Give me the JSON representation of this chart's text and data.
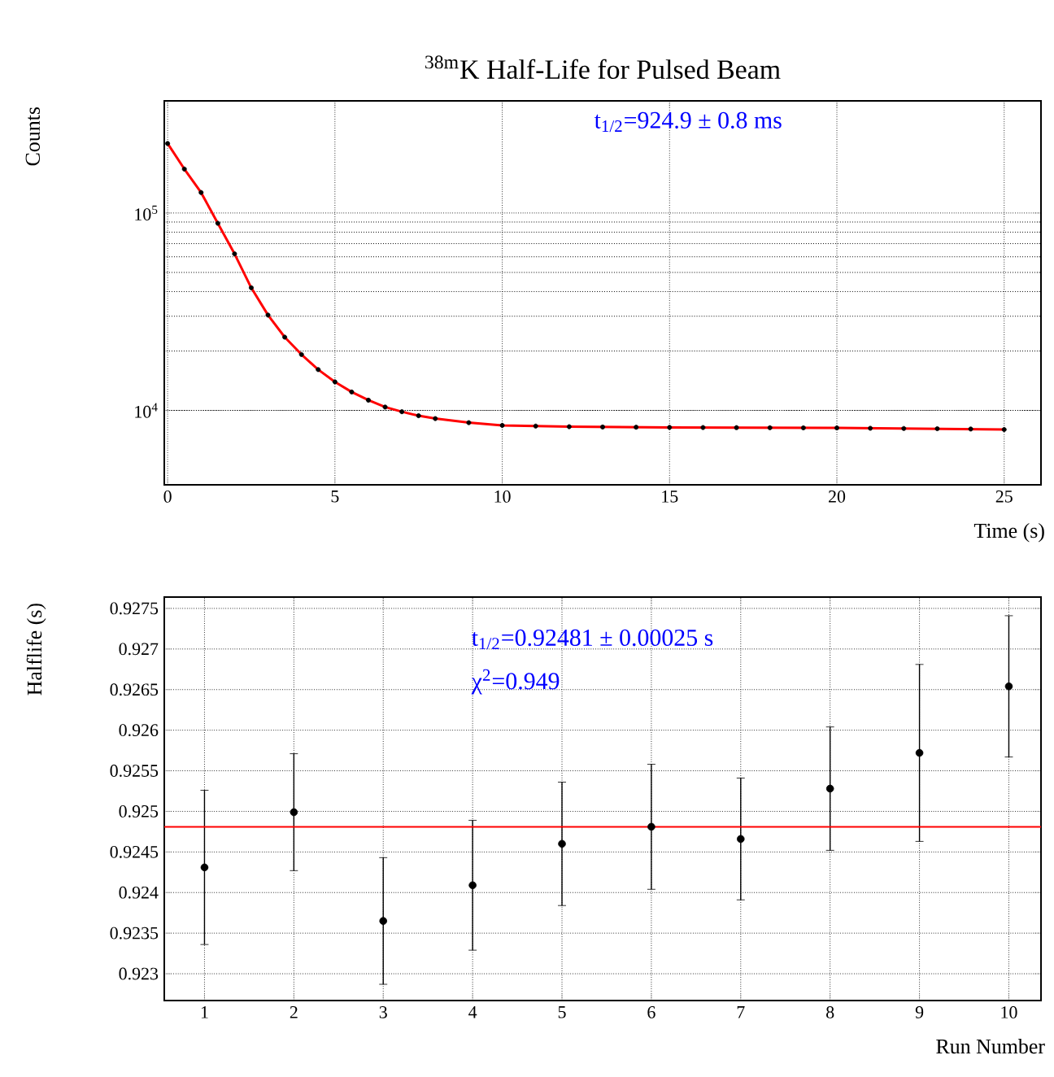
{
  "chart_data": [
    {
      "type": "scatter",
      "title": "$^{38m}$K Half-Life for Pulsed Beam",
      "xlabel": "Time (s)",
      "ylabel": "Counts",
      "annotations": [
        "t$_{1/2}$=924.9 ± 0.8 ms"
      ],
      "series": [
        {
          "type": "scatter",
          "color": "#000000",
          "marker": "circle",
          "x": [
            0,
            0.5,
            1,
            1.5,
            2,
            2.5,
            3,
            3.5,
            4,
            4.5,
            5,
            5.5,
            6,
            6.5,
            7,
            7.5,
            8,
            9,
            10,
            11,
            12,
            13,
            14,
            15,
            16,
            17,
            18,
            19,
            20,
            21,
            22,
            23,
            24,
            25
          ],
          "values": [
            225000,
            167000,
            127000,
            88700,
            62100,
            41800,
            30400,
            23500,
            19200,
            16100,
            13950,
            12400,
            11270,
            10400,
            9850,
            9400,
            9090,
            8670,
            8400,
            8330,
            8270,
            8240,
            8220,
            8200,
            8190,
            8180,
            8170,
            8160,
            8150,
            8120,
            8100,
            8080,
            8050,
            8000
          ]
        },
        {
          "type": "line",
          "color": "#ff0000",
          "marker": "none",
          "x": [
            0,
            0.5,
            1,
            1.5,
            2,
            2.5,
            3,
            3.5,
            4,
            4.5,
            5,
            5.5,
            6,
            6.5,
            7,
            7.5,
            8,
            9,
            10,
            12,
            15,
            20,
            25
          ],
          "values": [
            225000,
            167000,
            127000,
            88700,
            62100,
            41800,
            30400,
            23500,
            19200,
            16100,
            13950,
            12400,
            11270,
            10400,
            9850,
            9400,
            9090,
            8670,
            8400,
            8270,
            8200,
            8150,
            8000
          ]
        }
      ],
      "xlim": [
        -0.1,
        26.1
      ],
      "ylim": [
        4200,
        370000
      ],
      "xticks": [
        0,
        5,
        10,
        15,
        20,
        25
      ],
      "yticks": [
        {
          "value": 10000,
          "label": "10$^{4}$"
        },
        {
          "value": 100000,
          "label": "10$^{5}$"
        }
      ],
      "log": "y",
      "grid": true
    },
    {
      "type": "scatter",
      "xlabel": "Run Number",
      "ylabel": "Halflife (s)",
      "annotations": [
        "t$_{1/2}$=0.92481 ± 0.00025 s",
        "χ$^{2}$=0.949"
      ],
      "series": [
        {
          "type": "scatter",
          "color": "#000000",
          "marker": "circle",
          "x": [
            1,
            2,
            3,
            4,
            5,
            6,
            7,
            8,
            9,
            10
          ],
          "values": [
            0.92431,
            0.92499,
            0.92365,
            0.92409,
            0.9246,
            0.92481,
            0.92466,
            0.92528,
            0.92572,
            0.92654
          ],
          "errors": [
            0.00095,
            0.00072,
            0.00078,
            0.0008,
            0.00076,
            0.00077,
            0.00075,
            0.00076,
            0.00109,
            0.00087
          ]
        }
      ],
      "ref_lines": [
        {
          "axis": "y",
          "value": 0.92481,
          "color": "#ff0000"
        }
      ],
      "xlim": [
        0.55,
        10.36
      ],
      "ylim": [
        0.92267,
        0.92764
      ],
      "xticks": [
        1,
        2,
        3,
        4,
        5,
        6,
        7,
        8,
        9,
        10
      ],
      "yticks": [
        0.923,
        0.9235,
        0.924,
        0.9245,
        0.925,
        0.9255,
        0.926,
        0.9265,
        0.927,
        0.9275
      ],
      "grid": true
    }
  ]
}
